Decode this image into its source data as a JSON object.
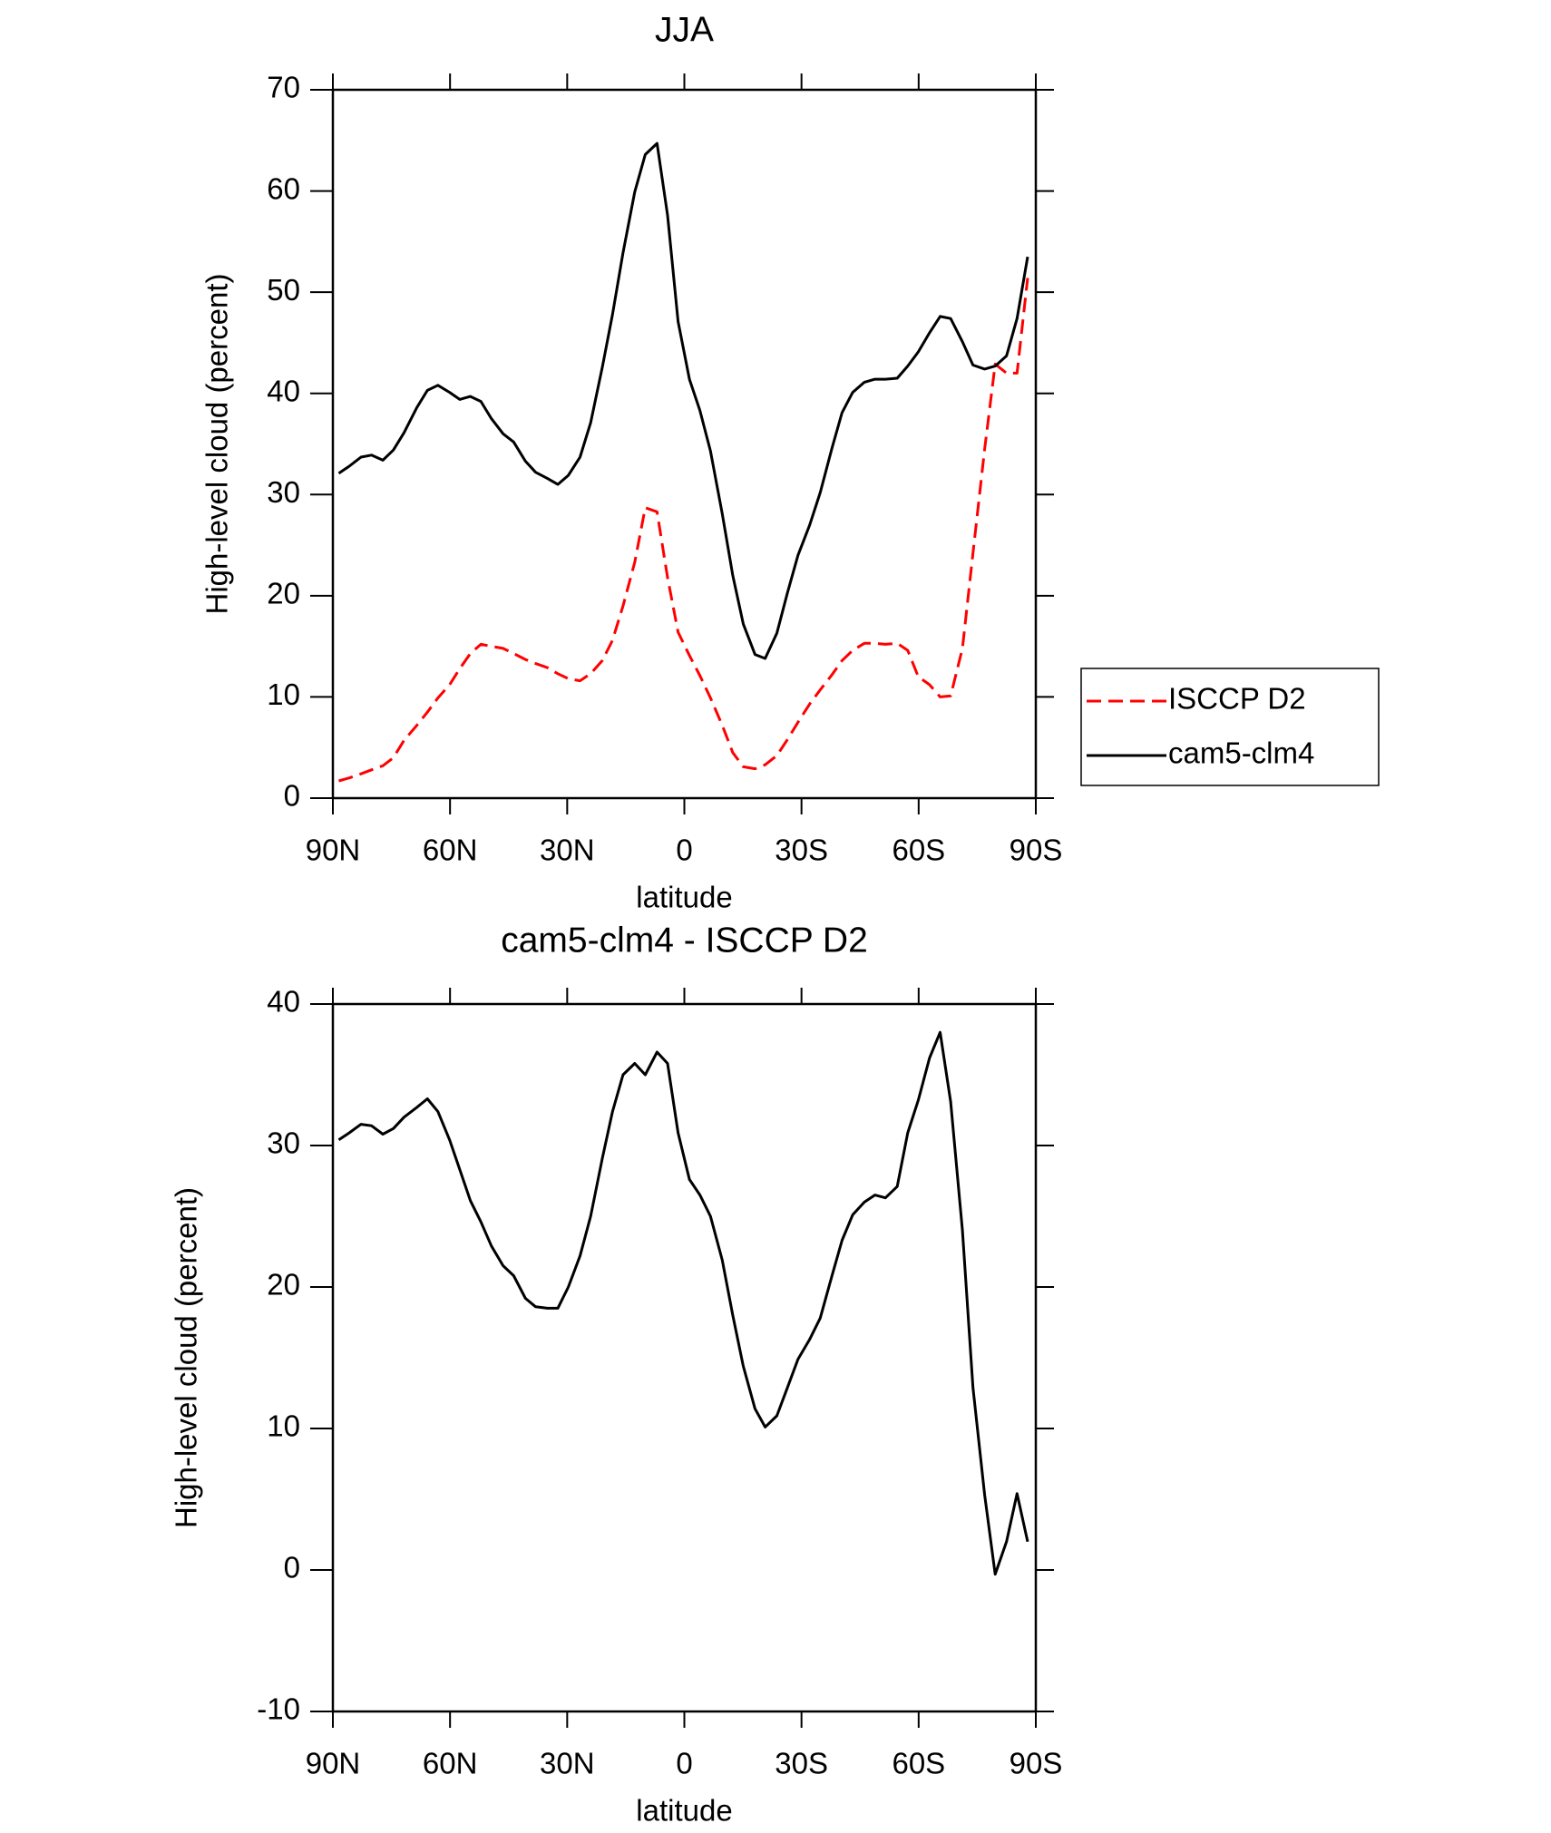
{
  "chart_data": [
    {
      "type": "line",
      "title": "JJA",
      "xlabel": "latitude",
      "ylabel": "High-level cloud (percent)",
      "x": [
        88.5,
        85.8,
        82.8,
        80.1,
        77.2,
        74.5,
        71.8,
        68.5,
        65.8,
        63.1,
        60.1,
        57.5,
        54.8,
        52.1,
        49.4,
        46.4,
        43.7,
        40.7,
        38.1,
        35.1,
        32.4,
        29.7,
        26.7,
        24.0,
        21.0,
        18.4,
        15.7,
        12.7,
        10.0,
        7.0,
        4.3,
        1.6,
        -1.3,
        -4.0,
        -6.7,
        -9.7,
        -12.4,
        -15.1,
        -18.1,
        -20.7,
        -23.7,
        -26.4,
        -29.1,
        -32.1,
        -34.8,
        -37.8,
        -40.4,
        -43.1,
        -46.1,
        -48.8,
        -51.5,
        -54.5,
        -57.2,
        -59.9,
        -62.8,
        -65.5,
        -68.2,
        -71.2,
        -73.9,
        -76.9,
        -79.6,
        -82.5,
        -85.2,
        -87.9
      ],
      "series": [
        {
          "name": "ISCCP D2",
          "color": "#ff0000",
          "dashed": true,
          "values": [
            1.7,
            2.0,
            2.4,
            2.8,
            3.2,
            4.0,
            5.7,
            7.2,
            8.5,
            9.9,
            11.2,
            12.8,
            14.3,
            15.2,
            15.0,
            14.8,
            14.3,
            13.7,
            13.3,
            12.9,
            12.3,
            11.8,
            11.6,
            12.3,
            13.6,
            15.6,
            19.0,
            23.3,
            28.7,
            28.3,
            21.8,
            16.4,
            14.1,
            12.1,
            9.9,
            7.2,
            4.5,
            3.1,
            2.9,
            3.3,
            4.2,
            5.8,
            7.5,
            9.3,
            10.7,
            12.2,
            13.6,
            14.6,
            15.3,
            15.3,
            15.2,
            15.3,
            14.6,
            12.0,
            11.2,
            10.0,
            10.1,
            14.8,
            24.2,
            34.5,
            42.9,
            42.0,
            42.0,
            51.4
          ]
        },
        {
          "name": "cam5-clm4",
          "color": "#000000",
          "dashed": false,
          "values": [
            32.1,
            32.8,
            33.7,
            33.9,
            33.4,
            34.4,
            36.1,
            38.6,
            40.3,
            40.8,
            40.1,
            39.4,
            39.7,
            39.2,
            37.5,
            36.0,
            35.2,
            33.3,
            32.2,
            31.6,
            31.0,
            31.9,
            33.7,
            37.1,
            42.6,
            47.8,
            53.9,
            59.9,
            63.6,
            64.7,
            57.6,
            47.1,
            41.4,
            38.3,
            34.3,
            28.1,
            22.0,
            17.2,
            14.2,
            13.8,
            16.3,
            20.3,
            24.0,
            27.0,
            30.2,
            34.6,
            38.1,
            40.1,
            41.1,
            41.4,
            41.4,
            41.5,
            42.7,
            44.1,
            46.0,
            47.6,
            47.4,
            45.1,
            42.8,
            42.4,
            42.7,
            43.7,
            47.4,
            53.5
          ]
        }
      ],
      "xlim": [
        90,
        -90
      ],
      "xticks": [
        {
          "value": 90,
          "label": "90N"
        },
        {
          "value": 60,
          "label": "60N"
        },
        {
          "value": 30,
          "label": "30N"
        },
        0,
        {
          "value": -30,
          "label": "30S"
        },
        {
          "value": -60,
          "label": "60S"
        },
        {
          "value": -90,
          "label": "90S"
        }
      ],
      "ylim": [
        0,
        70
      ],
      "yticks": [
        0,
        10,
        20,
        30,
        40,
        50,
        60,
        70
      ],
      "legend": "right"
    },
    {
      "type": "line",
      "title": "cam5-clm4 - ISCCP D2",
      "xlabel": "latitude",
      "ylabel": "High-level cloud (percent)",
      "x": [
        88.5,
        85.8,
        82.8,
        80.1,
        77.2,
        74.5,
        71.8,
        68.5,
        65.8,
        63.1,
        60.1,
        57.5,
        54.8,
        52.1,
        49.4,
        46.4,
        43.7,
        40.7,
        38.1,
        35.1,
        32.4,
        29.7,
        26.7,
        24.0,
        21.0,
        18.4,
        15.7,
        12.7,
        10.0,
        7.0,
        4.3,
        1.6,
        -1.3,
        -4.0,
        -6.7,
        -9.7,
        -12.4,
        -15.1,
        -18.1,
        -20.7,
        -23.7,
        -26.4,
        -29.1,
        -32.1,
        -34.8,
        -37.8,
        -40.4,
        -43.1,
        -46.1,
        -48.8,
        -51.5,
        -54.5,
        -57.2,
        -59.9,
        -62.8,
        -65.5,
        -68.2,
        -71.2,
        -73.9,
        -76.9,
        -79.6,
        -82.5,
        -85.2,
        -87.9
      ],
      "values": [
        30.4,
        30.9,
        31.5,
        31.4,
        30.8,
        31.2,
        32.0,
        32.7,
        33.3,
        32.4,
        30.4,
        28.3,
        26.1,
        24.6,
        22.9,
        21.5,
        20.8,
        19.2,
        18.6,
        18.5,
        18.5,
        20.0,
        22.2,
        25.0,
        29.1,
        32.4,
        35.0,
        35.8,
        35.0,
        36.6,
        35.8,
        30.9,
        27.6,
        26.5,
        25.0,
        21.9,
        18.0,
        14.4,
        11.4,
        10.1,
        10.9,
        12.9,
        14.9,
        16.3,
        17.8,
        20.8,
        23.3,
        25.1,
        26.0,
        26.5,
        26.3,
        27.1,
        30.9,
        33.2,
        36.2,
        38.0,
        33.1,
        24.0,
        12.9,
        5.3,
        -0.3,
        2.0,
        5.4,
        2.0
      ],
      "color": "#000000",
      "xlim": [
        90,
        -90
      ],
      "xticks": [
        {
          "value": 90,
          "label": "90N"
        },
        {
          "value": 60,
          "label": "60N"
        },
        {
          "value": 30,
          "label": "30N"
        },
        0,
        {
          "value": -30,
          "label": "30S"
        },
        {
          "value": -60,
          "label": "60S"
        },
        {
          "value": -90,
          "label": "90S"
        }
      ],
      "ylim": [
        -10,
        40
      ],
      "yticks": [
        -10,
        0,
        10,
        20,
        30,
        40
      ]
    }
  ]
}
